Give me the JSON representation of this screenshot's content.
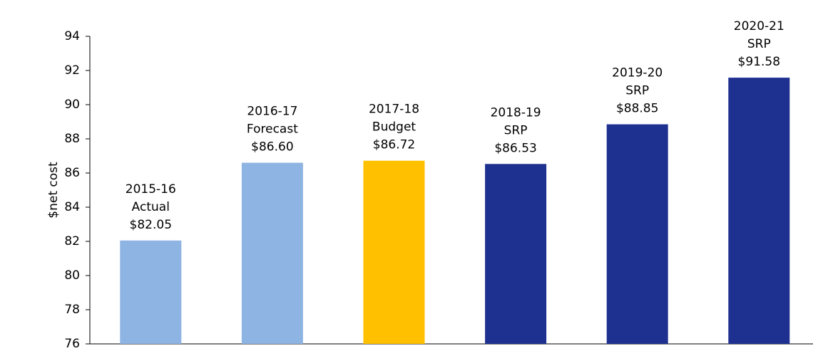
{
  "chart_data": {
    "type": "bar",
    "y_label": "$net cost",
    "categories": [
      "2015-16",
      "2016-17",
      "2017-18",
      "2018-19",
      "2019-20",
      "2020-21"
    ],
    "phases": [
      "Actual",
      "Forecast",
      "Budget",
      "SRP",
      "SRP",
      "SRP"
    ],
    "values": [
      82.05,
      86.6,
      86.72,
      86.53,
      88.85,
      91.58
    ],
    "value_labels": [
      "$82.05",
      "$86.60",
      "$86.72",
      "$86.53",
      "$88.85",
      "$91.58"
    ],
    "colors": [
      "#8eb4e3",
      "#8eb4e3",
      "#ffc000",
      "#1f3190",
      "#1f3190",
      "#1f3190"
    ],
    "ylim": [
      76,
      94
    ],
    "yticks": [
      76,
      78,
      80,
      82,
      84,
      86,
      88,
      90,
      92,
      94
    ],
    "grid": false
  }
}
